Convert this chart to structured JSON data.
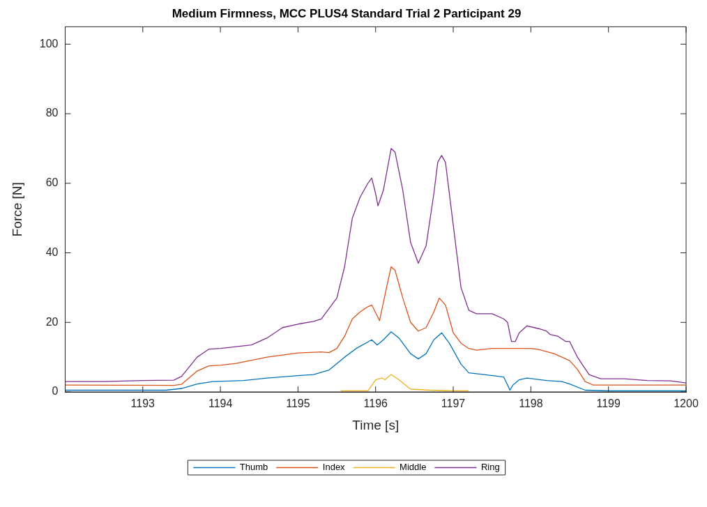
{
  "chart_data": {
    "type": "line",
    "title": "Medium Firmness, MCC PLUS4 Standard Trial 2 Participant 29",
    "xlabel": "Time [s]",
    "ylabel": "Force [N]",
    "xlim": [
      1192,
      1200
    ],
    "xticks": [
      1193,
      1194,
      1195,
      1196,
      1197,
      1198,
      1199,
      1200
    ],
    "ylim": [
      0,
      105
    ],
    "yticks": [
      0,
      20,
      40,
      60,
      80,
      100
    ],
    "legend": "bottom",
    "marker": "none",
    "line_style": "solid",
    "series": [
      {
        "name": "Thumb",
        "color": "#0072bd",
        "x": [
          1192,
          1193.3,
          1193.5,
          1193.7,
          1193.9,
          1194.3,
          1194.6,
          1195,
          1195.2,
          1195.4,
          1195.6,
          1195.75,
          1195.95,
          1196.02,
          1196.1,
          1196.2,
          1196.3,
          1196.45,
          1196.55,
          1196.65,
          1196.75,
          1196.85,
          1196.95,
          1197.1,
          1197.2,
          1197.4,
          1197.65,
          1197.7,
          1197.73,
          1197.77,
          1197.85,
          1197.95,
          1198.2,
          1198.4,
          1198.5,
          1198.7,
          1199,
          1200
        ],
        "values": [
          0.5,
          0.5,
          1,
          2.3,
          3,
          3.3,
          4,
          4.7,
          5,
          6.3,
          10,
          12.5,
          15,
          13.5,
          15,
          17.3,
          15.5,
          11,
          9.5,
          11,
          15,
          17,
          14,
          8,
          5.5,
          5,
          4.3,
          2,
          0.5,
          2,
          3.5,
          4,
          3.3,
          3,
          2.3,
          0.5,
          0.3,
          0.3
        ]
      },
      {
        "name": "Index",
        "color": "#d95319",
        "x": [
          1192,
          1193.4,
          1193.5,
          1193.7,
          1193.85,
          1194,
          1194.2,
          1194.6,
          1195,
          1195.3,
          1195.4,
          1195.5,
          1195.6,
          1195.7,
          1195.8,
          1195.9,
          1195.95,
          1196.05,
          1196.15,
          1196.2,
          1196.25,
          1196.35,
          1196.45,
          1196.55,
          1196.65,
          1196.75,
          1196.82,
          1196.9,
          1197,
          1197.1,
          1197.2,
          1197.3,
          1197.5,
          1198,
          1198.1,
          1198.3,
          1198.5,
          1198.6,
          1198.7,
          1198.8,
          1199,
          1200
        ],
        "values": [
          2,
          1.9,
          2.2,
          6,
          7.5,
          7.7,
          8.2,
          10,
          11.2,
          11.5,
          11.3,
          12.5,
          16,
          21,
          23,
          24.5,
          25,
          20.5,
          31,
          36,
          35,
          27,
          20,
          17.5,
          18.5,
          23,
          27,
          25,
          17,
          14,
          12.5,
          12,
          12.5,
          12.5,
          12.2,
          11,
          9,
          6.5,
          3,
          2,
          2,
          2
        ]
      },
      {
        "name": "Middle",
        "color": "#edb120",
        "x": [
          1195.55,
          1195.9,
          1196,
          1196.08,
          1196.12,
          1196.2,
          1196.3,
          1196.45,
          1196.7,
          1197,
          1197.2
        ],
        "values": [
          0.3,
          0.3,
          3.5,
          4,
          3.5,
          5,
          3.5,
          0.8,
          0.5,
          0.3,
          0.3
        ]
      },
      {
        "name": "Ring",
        "color": "#7e2f8e",
        "x": [
          1192,
          1192.5,
          1193,
          1193.4,
          1193.5,
          1193.7,
          1193.85,
          1194,
          1194.2,
          1194.4,
          1194.6,
          1194.8,
          1195,
          1195.2,
          1195.3,
          1195.4,
          1195.5,
          1195.6,
          1195.7,
          1195.8,
          1195.9,
          1195.95,
          1196,
          1196.03,
          1196.1,
          1196.2,
          1196.25,
          1196.35,
          1196.45,
          1196.55,
          1196.65,
          1196.75,
          1196.8,
          1196.85,
          1196.9,
          1197,
          1197.1,
          1197.2,
          1197.3,
          1197.5,
          1197.65,
          1197.7,
          1197.75,
          1197.8,
          1197.85,
          1197.95,
          1198.1,
          1198.2,
          1198.25,
          1198.35,
          1198.45,
          1198.5,
          1198.6,
          1198.75,
          1198.9,
          1199.2,
          1199.5,
          1199.8,
          1200
        ],
        "values": [
          3,
          3,
          3.3,
          3.4,
          4.5,
          10,
          12.3,
          12.5,
          13,
          13.5,
          15.5,
          18.5,
          19.5,
          20.3,
          21,
          24,
          27,
          36,
          50,
          56,
          60,
          61.5,
          57,
          53.5,
          58,
          70,
          69,
          58,
          43,
          37,
          42,
          57,
          66,
          68,
          66,
          48,
          30,
          23.5,
          22.5,
          22.5,
          21,
          20,
          14.5,
          14.5,
          17,
          19,
          18.2,
          17.5,
          16.5,
          16,
          14.5,
          14.5,
          10,
          5,
          3.8,
          3.8,
          3.3,
          3.2,
          2.6
        ]
      }
    ]
  }
}
